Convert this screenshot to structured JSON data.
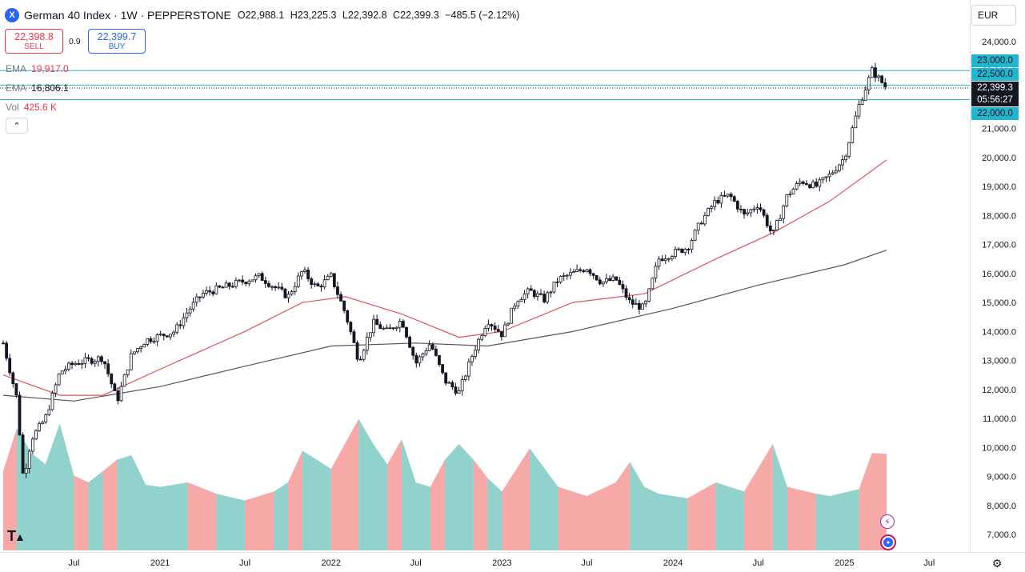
{
  "header": {
    "symbol_badge": "X",
    "title": "German 40 Index · 1W · PEPPERSTONE",
    "ohlc": [
      {
        "key": "O",
        "value": "22,988.1"
      },
      {
        "key": "H",
        "value": "23,225.3"
      },
      {
        "key": "L",
        "value": "22,392.8"
      },
      {
        "key": "C",
        "value": "22,399.3"
      }
    ],
    "change": "−485.5 (−2.12%)"
  },
  "trade": {
    "sell_price": "22,398.8",
    "sell_label": "SELL",
    "spread": "0.9",
    "buy_price": "22,399.7",
    "buy_label": "BUY"
  },
  "indicators": [
    {
      "name": "EMA",
      "value": "19,917.0",
      "color": "#f23645"
    },
    {
      "name": "EMA",
      "value": "16,806.1",
      "color": "#131722"
    },
    {
      "name": "Vol",
      "value": "425.6 K",
      "color": "#f23645"
    }
  ],
  "currency": "EUR",
  "price_tags": {
    "level_23000": "23,000.0",
    "level_22500": "22,500.0",
    "last_price": "22,399.3",
    "countdown": "05:56:27",
    "level_22000": "22,000.0"
  },
  "icons": {
    "collapse": "chevron-up-icon",
    "logo": "tradingview-logo",
    "settings": "gear-icon",
    "alert": "lightning-icon",
    "globe": "globe-icon"
  },
  "colors": {
    "up_volume": "#26a69a",
    "down_volume": "#ef5350",
    "ema_fast": "#e05260",
    "ema_slow": "#555555",
    "hline": "#22b5d0",
    "candle": "#131722"
  },
  "chart_data": {
    "type": "candlestick",
    "x_tick_labels": [
      "Jul",
      "2021",
      "Jul",
      "2022",
      "Jul",
      "2023",
      "Jul",
      "2024",
      "Jul",
      "2025",
      "Jul"
    ],
    "x_tick_dates": [
      "2020-07",
      "2021-01",
      "2021-07",
      "2022-01",
      "2022-07",
      "2023-01",
      "2023-07",
      "2024-01",
      "2024-07",
      "2025-01",
      "2025-07"
    ],
    "y_ticks": [
      7000,
      8000,
      9000,
      10000,
      11000,
      12000,
      13000,
      14000,
      15000,
      16000,
      17000,
      18000,
      19000,
      20000,
      21000,
      22000,
      23000,
      24000
    ],
    "y_tick_labels": [
      "7,000.0",
      "8,000.0",
      "9,000.0",
      "10,000.0",
      "11,000.0",
      "12,000.0",
      "13,000.0",
      "14,000.0",
      "15,000.0",
      "16,000.0",
      "17,000.0",
      "18,000.0",
      "19,000.0",
      "20,000.0",
      "21,000.0",
      "22,000.0",
      "23,000.0",
      "24,000.0"
    ],
    "ylim": [
      6500,
      24200
    ],
    "horizontal_levels": [
      23000,
      22500,
      22000
    ],
    "close_path": [
      {
        "date": "2020-02",
        "close": 13600
      },
      {
        "date": "2020-03-01",
        "close": 11700
      },
      {
        "date": "2020-03-15",
        "close": 8900
      },
      {
        "date": "2020-04",
        "close": 10300
      },
      {
        "date": "2020-05",
        "close": 11000
      },
      {
        "date": "2020-06",
        "close": 12600
      },
      {
        "date": "2020-07",
        "close": 12900
      },
      {
        "date": "2020-09",
        "close": 13100
      },
      {
        "date": "2020-10",
        "close": 11600
      },
      {
        "date": "2020-11",
        "close": 13200
      },
      {
        "date": "2020-12",
        "close": 13700
      },
      {
        "date": "2021-02",
        "close": 14000
      },
      {
        "date": "2021-03",
        "close": 14700
      },
      {
        "date": "2021-04",
        "close": 15300
      },
      {
        "date": "2021-06",
        "close": 15600
      },
      {
        "date": "2021-08",
        "close": 15900
      },
      {
        "date": "2021-10",
        "close": 15200
      },
      {
        "date": "2021-11",
        "close": 16100
      },
      {
        "date": "2021-12",
        "close": 15500
      },
      {
        "date": "2022-01",
        "close": 15900
      },
      {
        "date": "2022-02",
        "close": 14600
      },
      {
        "date": "2022-03",
        "close": 13000
      },
      {
        "date": "2022-04",
        "close": 14300
      },
      {
        "date": "2022-05",
        "close": 14000
      },
      {
        "date": "2022-06",
        "close": 14400
      },
      {
        "date": "2022-07",
        "close": 12900
      },
      {
        "date": "2022-08",
        "close": 13600
      },
      {
        "date": "2022-09",
        "close": 12300
      },
      {
        "date": "2022-10",
        "close": 11900
      },
      {
        "date": "2022-11",
        "close": 13300
      },
      {
        "date": "2022-12",
        "close": 14400
      },
      {
        "date": "2023-01",
        "close": 13900
      },
      {
        "date": "2023-02",
        "close": 15100
      },
      {
        "date": "2023-03",
        "close": 15400
      },
      {
        "date": "2023-04",
        "close": 15100
      },
      {
        "date": "2023-05",
        "close": 15800
      },
      {
        "date": "2023-06",
        "close": 16000
      },
      {
        "date": "2023-07",
        "close": 16200
      },
      {
        "date": "2023-08",
        "close": 15700
      },
      {
        "date": "2023-09",
        "close": 15800
      },
      {
        "date": "2023-10",
        "close": 15000
      },
      {
        "date": "2023-11",
        "close": 14800
      },
      {
        "date": "2023-12",
        "close": 16500
      },
      {
        "date": "2024-01",
        "close": 16700
      },
      {
        "date": "2024-02",
        "close": 16900
      },
      {
        "date": "2024-03",
        "close": 17800
      },
      {
        "date": "2024-04",
        "close": 18500
      },
      {
        "date": "2024-05",
        "close": 18700
      },
      {
        "date": "2024-06",
        "close": 18000
      },
      {
        "date": "2024-07",
        "close": 18400
      },
      {
        "date": "2024-08",
        "close": 17300
      },
      {
        "date": "2024-09",
        "close": 18700
      },
      {
        "date": "2024-10",
        "close": 19200
      },
      {
        "date": "2024-11",
        "close": 19000
      },
      {
        "date": "2024-12",
        "close": 19400
      },
      {
        "date": "2025-01",
        "close": 20000
      },
      {
        "date": "2025-02",
        "close": 21800
      },
      {
        "date": "2025-03",
        "close": 23000
      },
      {
        "date": "2025-04",
        "close": 22400
      }
    ],
    "ema_fast_path": [
      {
        "date": "2020-02",
        "value": 12500
      },
      {
        "date": "2020-06",
        "value": 11800
      },
      {
        "date": "2020-09",
        "value": 11800
      },
      {
        "date": "2021-01",
        "value": 12700
      },
      {
        "date": "2021-07",
        "value": 14000
      },
      {
        "date": "2021-11",
        "value": 15000
      },
      {
        "date": "2022-02",
        "value": 15200
      },
      {
        "date": "2022-06",
        "value": 14600
      },
      {
        "date": "2022-10",
        "value": 13800
      },
      {
        "date": "2023-01",
        "value": 14000
      },
      {
        "date": "2023-06",
        "value": 15000
      },
      {
        "date": "2023-11",
        "value": 15300
      },
      {
        "date": "2024-04",
        "value": 16500
      },
      {
        "date": "2024-08",
        "value": 17400
      },
      {
        "date": "2024-12",
        "value": 18500
      },
      {
        "date": "2025-04",
        "value": 19917
      }
    ],
    "ema_slow_path": [
      {
        "date": "2020-02",
        "value": 11800
      },
      {
        "date": "2020-07",
        "value": 11600
      },
      {
        "date": "2021-01",
        "value": 12100
      },
      {
        "date": "2021-07",
        "value": 12800
      },
      {
        "date": "2022-01",
        "value": 13500
      },
      {
        "date": "2022-07",
        "value": 13600
      },
      {
        "date": "2022-12",
        "value": 13500
      },
      {
        "date": "2023-06",
        "value": 14000
      },
      {
        "date": "2024-01",
        "value": 14800
      },
      {
        "date": "2024-07",
        "value": 15600
      },
      {
        "date": "2025-01",
        "value": 16300
      },
      {
        "date": "2025-04",
        "value": 16806
      }
    ],
    "volume_note_values": "volume in thousands, sampled monthly",
    "volume_series": [
      {
        "date": "2020-02",
        "volume": 350,
        "dir": "down"
      },
      {
        "date": "2020-03",
        "volume": 540,
        "dir": "down"
      },
      {
        "date": "2020-04",
        "volume": 430,
        "dir": "up"
      },
      {
        "date": "2020-05",
        "volume": 380,
        "dir": "up"
      },
      {
        "date": "2020-06",
        "volume": 560,
        "dir": "up"
      },
      {
        "date": "2020-07",
        "volume": 330,
        "dir": "up"
      },
      {
        "date": "2020-08",
        "volume": 300,
        "dir": "down"
      },
      {
        "date": "2020-09",
        "volume": 350,
        "dir": "up"
      },
      {
        "date": "2020-10",
        "volume": 400,
        "dir": "down"
      },
      {
        "date": "2020-11",
        "volume": 420,
        "dir": "up"
      },
      {
        "date": "2020-12",
        "volume": 290,
        "dir": "up"
      },
      {
        "date": "2021-01",
        "volume": 280,
        "dir": "up"
      },
      {
        "date": "2021-03",
        "volume": 300,
        "dir": "up"
      },
      {
        "date": "2021-05",
        "volume": 250,
        "dir": "down"
      },
      {
        "date": "2021-07",
        "volume": 220,
        "dir": "up"
      },
      {
        "date": "2021-09",
        "volume": 260,
        "dir": "down"
      },
      {
        "date": "2021-10",
        "volume": 300,
        "dir": "up"
      },
      {
        "date": "2021-11",
        "volume": 440,
        "dir": "down"
      },
      {
        "date": "2022-01",
        "volume": 360,
        "dir": "up"
      },
      {
        "date": "2022-03",
        "volume": 580,
        "dir": "down"
      },
      {
        "date": "2022-04",
        "volume": 470,
        "dir": "up"
      },
      {
        "date": "2022-05",
        "volume": 380,
        "dir": "up"
      },
      {
        "date": "2022-06",
        "volume": 490,
        "dir": "down"
      },
      {
        "date": "2022-07",
        "volume": 300,
        "dir": "up"
      },
      {
        "date": "2022-08",
        "volume": 280,
        "dir": "up"
      },
      {
        "date": "2022-09",
        "volume": 400,
        "dir": "down"
      },
      {
        "date": "2022-10",
        "volume": 470,
        "dir": "up"
      },
      {
        "date": "2022-11",
        "volume": 400,
        "dir": "up"
      },
      {
        "date": "2022-12",
        "volume": 320,
        "dir": "down"
      },
      {
        "date": "2023-01",
        "volume": 260,
        "dir": "up"
      },
      {
        "date": "2023-03",
        "volume": 450,
        "dir": "down"
      },
      {
        "date": "2023-05",
        "volume": 280,
        "dir": "up"
      },
      {
        "date": "2023-07",
        "volume": 240,
        "dir": "down"
      },
      {
        "date": "2023-09",
        "volume": 300,
        "dir": "down"
      },
      {
        "date": "2023-10",
        "volume": 390,
        "dir": "down"
      },
      {
        "date": "2023-11",
        "volume": 280,
        "dir": "up"
      },
      {
        "date": "2023-12",
        "volume": 250,
        "dir": "up"
      },
      {
        "date": "2024-02",
        "volume": 230,
        "dir": "up"
      },
      {
        "date": "2024-04",
        "volume": 300,
        "dir": "down"
      },
      {
        "date": "2024-06",
        "volume": 260,
        "dir": "up"
      },
      {
        "date": "2024-08",
        "volume": 470,
        "dir": "down"
      },
      {
        "date": "2024-09",
        "volume": 280,
        "dir": "up"
      },
      {
        "date": "2024-11",
        "volume": 250,
        "dir": "down"
      },
      {
        "date": "2024-12",
        "volume": 240,
        "dir": "up"
      },
      {
        "date": "2025-02",
        "volume": 270,
        "dir": "up"
      },
      {
        "date": "2025-03",
        "volume": 430,
        "dir": "down"
      },
      {
        "date": "2025-04",
        "volume": 425.6,
        "dir": "down"
      }
    ]
  }
}
